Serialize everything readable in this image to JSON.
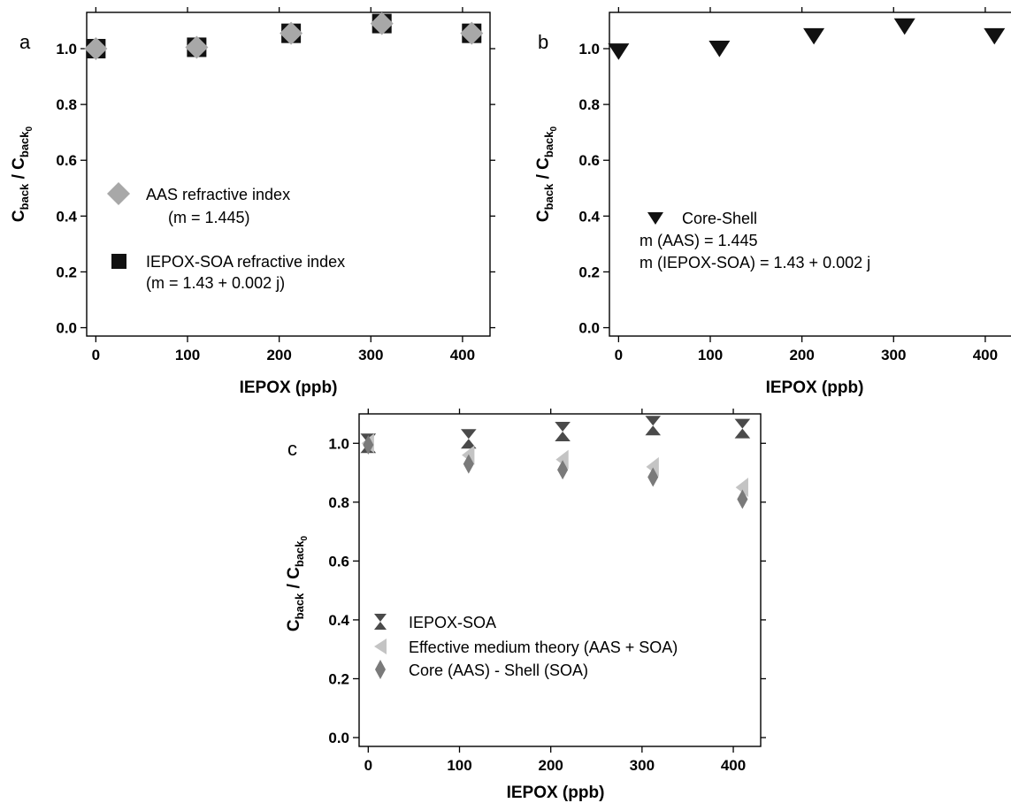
{
  "chart_data": [
    {
      "type": "scatter",
      "panel_label": "a",
      "xlabel": "IEPOX (ppb)",
      "ylabel_main": "C",
      "ylabel_sub": "back",
      "ylabel_sep": " / ",
      "ylabel_main2": "C",
      "ylabel_sub2": "back",
      "ylabel_subsub": "0",
      "xlim": [
        -10,
        430
      ],
      "ylim": [
        -0.03,
        1.13
      ],
      "xticks": [
        0,
        100,
        200,
        300,
        400
      ],
      "yticks": [
        0.0,
        0.2,
        0.4,
        0.6,
        0.8,
        1.0
      ],
      "xtick_labels": [
        "0",
        "100",
        "200",
        "300",
        "400"
      ],
      "ytick_labels": [
        "0.0",
        "0.2",
        "0.4",
        "0.6",
        "0.8",
        "1.0"
      ],
      "legend_lines": [
        "AAS refractive index",
        "(m = 1.445)",
        "IEPOX-SOA refractive index",
        "(m = 1.43 + 0.002 j)"
      ],
      "series": [
        {
          "name": "IEPOX-SOA refractive index",
          "marker": "square",
          "color": "#111111",
          "x": [
            0,
            110,
            213,
            312,
            410
          ],
          "y": [
            1.0,
            1.005,
            1.055,
            1.09,
            1.055
          ]
        },
        {
          "name": "AAS refractive index",
          "marker": "diamond",
          "color": "#a8a8a8",
          "x": [
            0,
            110,
            213,
            312,
            410
          ],
          "y": [
            1.0,
            1.005,
            1.055,
            1.09,
            1.055
          ]
        }
      ]
    },
    {
      "type": "scatter",
      "panel_label": "b",
      "xlabel": "IEPOX (ppb)",
      "ylabel_main": "C",
      "ylabel_sub": "back",
      "ylabel_sep": " / ",
      "ylabel_main2": "C",
      "ylabel_sub2": "back",
      "ylabel_subsub": "0",
      "xlim": [
        -10,
        430
      ],
      "ylim": [
        -0.03,
        1.13
      ],
      "xticks": [
        0,
        100,
        200,
        300,
        400
      ],
      "yticks": [
        0.0,
        0.2,
        0.4,
        0.6,
        0.8,
        1.0
      ],
      "xtick_labels": [
        "0",
        "100",
        "200",
        "300",
        "400"
      ],
      "ytick_labels": [
        "0.0",
        "0.2",
        "0.4",
        "0.6",
        "0.8",
        "1.0"
      ],
      "legend_lines": [
        "Core-Shell",
        "m (AAS) = 1.445",
        "m (IEPOX-SOA) = 1.43 + 0.002 j"
      ],
      "series": [
        {
          "name": "Core-Shell",
          "marker": "triangle-down",
          "color": "#111111",
          "x": [
            0,
            110,
            213,
            312,
            410
          ],
          "y": [
            0.99,
            1.0,
            1.045,
            1.08,
            1.045
          ]
        }
      ]
    },
    {
      "type": "scatter",
      "panel_label": "c",
      "xlabel": "IEPOX (ppb)",
      "ylabel_main": "C",
      "ylabel_sub": "back",
      "ylabel_sep": " / ",
      "ylabel_main2": "C",
      "ylabel_sub2": "back",
      "ylabel_subsub": "0",
      "xlim": [
        -10,
        430
      ],
      "ylim": [
        -0.03,
        1.1
      ],
      "xticks": [
        0,
        100,
        200,
        300,
        400
      ],
      "yticks": [
        0.0,
        0.2,
        0.4,
        0.6,
        0.8,
        1.0
      ],
      "xtick_labels": [
        "0",
        "100",
        "200",
        "300",
        "400"
      ],
      "ytick_labels": [
        "0.0",
        "0.2",
        "0.4",
        "0.6",
        "0.8",
        "1.0"
      ],
      "legend_lines": [
        "IEPOX-SOA",
        "Effective medium theory (AAS + SOA)",
        "Core (AAS) - Shell (SOA)"
      ],
      "series": [
        {
          "name": "IEPOX-SOA",
          "marker": "hourglass",
          "color": "#4a4a4a",
          "x": [
            0,
            110,
            213,
            312,
            410
          ],
          "y": [
            1.0,
            1.015,
            1.04,
            1.06,
            1.05
          ]
        },
        {
          "name": "Effective medium theory (AAS + SOA)",
          "marker": "triangle-left",
          "color": "#c4c4c4",
          "x": [
            0,
            110,
            213,
            312,
            410
          ],
          "y": [
            1.0,
            0.96,
            0.945,
            0.92,
            0.85
          ]
        },
        {
          "name": "Core (AAS) - Shell (SOA)",
          "marker": "thin-diamond",
          "color": "#7a7a7a",
          "x": [
            0,
            110,
            213,
            312,
            410
          ],
          "y": [
            0.995,
            0.93,
            0.91,
            0.885,
            0.81
          ]
        }
      ]
    }
  ]
}
